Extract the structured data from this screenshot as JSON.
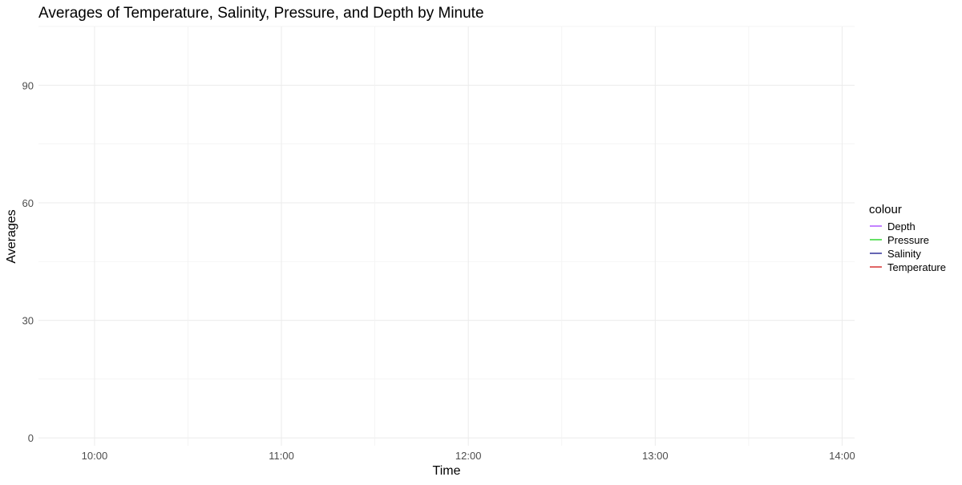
{
  "chart_data": {
    "type": "line",
    "title": "Averages of Temperature, Salinity, Pressure, and Depth by Minute",
    "xlabel": "Time",
    "ylabel": "Averages",
    "x_ticks": [
      "10:00",
      "11:00",
      "12:00",
      "13:00",
      "14:00"
    ],
    "y_ticks": [
      0,
      30,
      60,
      90
    ],
    "xlim": [
      "09:42",
      "14:04"
    ],
    "ylim": [
      -2,
      105
    ],
    "grid": true,
    "legend": {
      "title": "colour",
      "placement": "right",
      "entries": [
        {
          "label": "Depth",
          "color": "#9b30ff"
        },
        {
          "label": "Pressure",
          "color": "#00cd00"
        },
        {
          "label": "Salinity",
          "color": "#000080"
        },
        {
          "label": "Temperature",
          "color": "#cd0000"
        }
      ]
    },
    "series": [
      {
        "name": "Depth",
        "color": "#9b30ff",
        "x": [],
        "values": []
      },
      {
        "name": "Pressure",
        "color": "#00cd00",
        "x": [],
        "values": []
      },
      {
        "name": "Salinity",
        "color": "#000080",
        "x": [],
        "values": []
      },
      {
        "name": "Temperature",
        "color": "#cd0000",
        "x": [],
        "values": []
      }
    ]
  }
}
